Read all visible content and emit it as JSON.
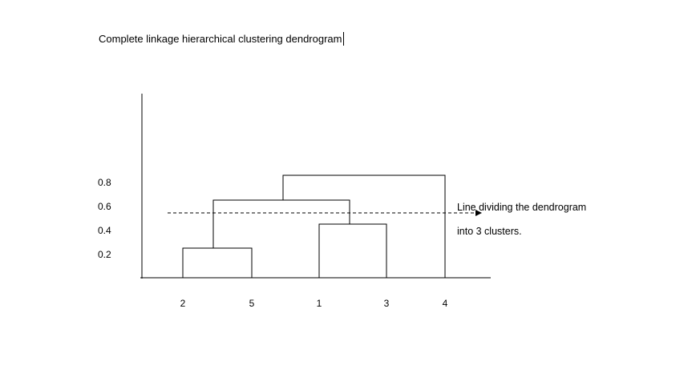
{
  "document": {
    "title": "Complete linkage hierarchical clustering dendrogram"
  },
  "chart_data": {
    "type": "dendrogram",
    "linkage": "complete",
    "y_ticks": [
      "0.8",
      "0.6",
      "0.4",
      "0.2"
    ],
    "y_tick_values": [
      0.8,
      0.6,
      0.4,
      0.2
    ],
    "leaves": [
      "2",
      "5",
      "1",
      "3",
      "4"
    ],
    "merges": [
      {
        "left": "2",
        "right": "5",
        "height": 0.25
      },
      {
        "left": "1",
        "right": "3",
        "height": 0.45
      },
      {
        "left": "2,5",
        "right": "1,3",
        "height": 0.65
      },
      {
        "left": "2,5,1,3",
        "right": "4",
        "height": 0.85
      }
    ],
    "cut_height": 0.55,
    "annotation_lines": [
      "Line dividing the dendrogram",
      "into 3 clusters."
    ],
    "colors": {
      "lines": "#000000",
      "background": "#ffffff"
    }
  }
}
